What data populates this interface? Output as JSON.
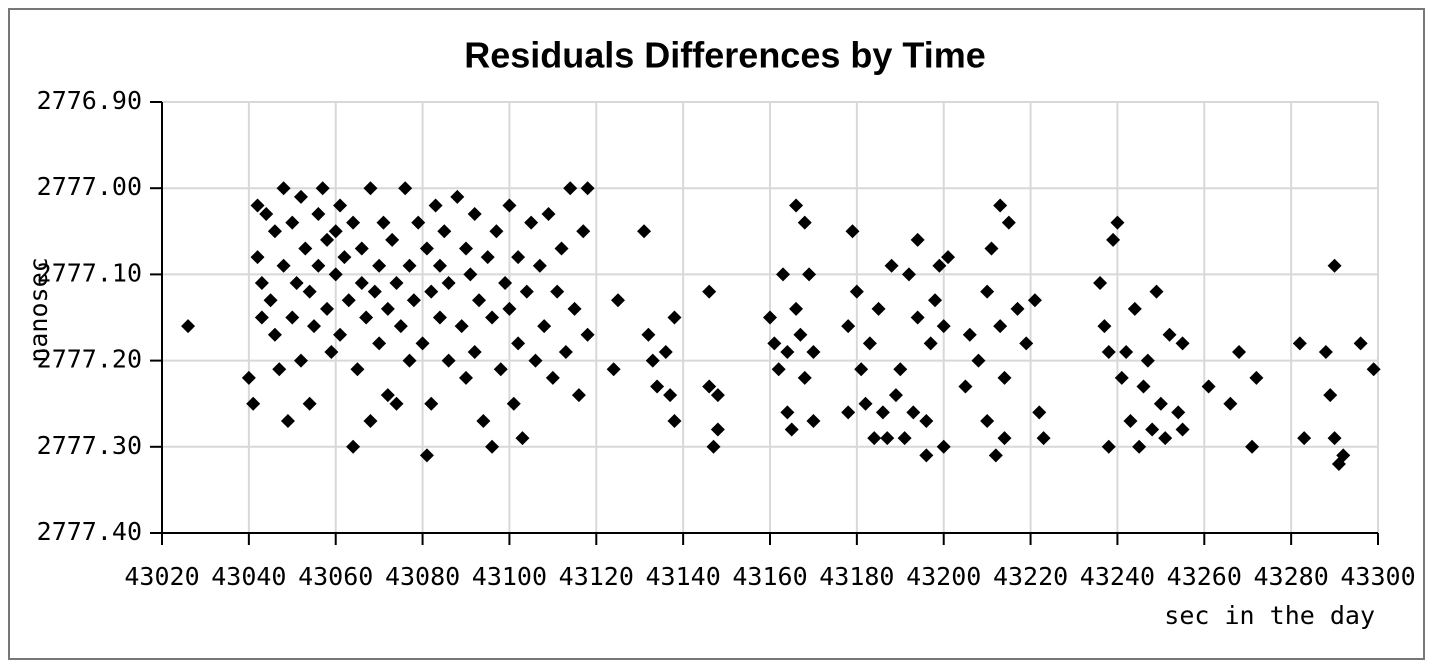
{
  "chart_data": {
    "type": "scatter",
    "title": "Residuals Differences by Time",
    "x_label": "sec in the day",
    "y_label": "nanosec",
    "xlim": [
      43020,
      43300
    ],
    "xticks": [
      43020,
      43040,
      43060,
      43080,
      43100,
      43120,
      43140,
      43160,
      43180,
      43200,
      43220,
      43240,
      43260,
      43280,
      43300
    ],
    "ylim": [
      2776.9,
      2777.4
    ],
    "y_inverted": true,
    "yticks": [
      {
        "value": 2776.9,
        "label": "2776.90"
      },
      {
        "value": 2777.0,
        "label": "2777.00"
      },
      {
        "value": 2777.1,
        "label": "2777.10"
      },
      {
        "value": 2777.2,
        "label": "2777.20"
      },
      {
        "value": 2777.3,
        "label": "2777.30"
      },
      {
        "value": 2777.4,
        "label": "2777.40"
      }
    ],
    "grid": true,
    "color": "#000000",
    "x": [
      43026,
      43040,
      43041,
      43042,
      43042,
      43043,
      43043,
      43044,
      43045,
      43046,
      43046,
      43047,
      43048,
      43048,
      43049,
      43050,
      43050,
      43051,
      43052,
      43052,
      43053,
      43054,
      43054,
      43055,
      43056,
      43056,
      43057,
      43058,
      43058,
      43059,
      43060,
      43060,
      43061,
      43061,
      43062,
      43063,
      43064,
      43064,
      43065,
      43066,
      43066,
      43067,
      43068,
      43068,
      43069,
      43070,
      43070,
      43071,
      43072,
      43072,
      43073,
      43074,
      43074,
      43075,
      43076,
      43077,
      43077,
      43078,
      43079,
      43080,
      43081,
      43081,
      43082,
      43082,
      43083,
      43084,
      43084,
      43085,
      43086,
      43086,
      43088,
      43089,
      43090,
      43090,
      43091,
      43092,
      43092,
      43093,
      43094,
      43095,
      43096,
      43096,
      43097,
      43098,
      43099,
      43100,
      43100,
      43101,
      43102,
      43102,
      43103,
      43104,
      43105,
      43106,
      43107,
      43108,
      43109,
      43110,
      43111,
      43112,
      43113,
      43114,
      43115,
      43116,
      43117,
      43118,
      43118,
      43124,
      43125,
      43131,
      43132,
      43133,
      43134,
      43136,
      43137,
      43138,
      43138,
      43146,
      43146,
      43147,
      43148,
      43148,
      43160,
      43161,
      43162,
      43163,
      43164,
      43164,
      43165,
      43166,
      43166,
      43167,
      43168,
      43168,
      43169,
      43170,
      43170,
      43178,
      43178,
      43179,
      43180,
      43181,
      43182,
      43183,
      43184,
      43185,
      43186,
      43187,
      43188,
      43189,
      43190,
      43191,
      43192,
      43193,
      43194,
      43194,
      43196,
      43196,
      43197,
      43198,
      43199,
      43200,
      43200,
      43201,
      43205,
      43206,
      43208,
      43210,
      43210,
      43211,
      43212,
      43213,
      43213,
      43214,
      43214,
      43215,
      43217,
      43219,
      43221,
      43222,
      43223,
      43236,
      43237,
      43238,
      43238,
      43239,
      43240,
      43241,
      43242,
      43243,
      43244,
      43245,
      43246,
      43247,
      43248,
      43249,
      43250,
      43251,
      43252,
      43254,
      43255,
      43255,
      43261,
      43266,
      43268,
      43271,
      43272,
      43282,
      43283,
      43288,
      43289,
      43290,
      43290,
      43291,
      43292,
      43296,
      43299
    ],
    "values": [
      2777.16,
      2777.22,
      2777.25,
      2777.02,
      2777.08,
      2777.11,
      2777.15,
      2777.03,
      2777.13,
      2777.05,
      2777.17,
      2777.21,
      2777.0,
      2777.09,
      2777.27,
      2777.15,
      2777.04,
      2777.11,
      2777.2,
      2777.01,
      2777.07,
      2777.12,
      2777.25,
      2777.16,
      2777.03,
      2777.09,
      2777.0,
      2777.14,
      2777.06,
      2777.19,
      2777.05,
      2777.1,
      2777.02,
      2777.17,
      2777.08,
      2777.13,
      2777.3,
      2777.04,
      2777.21,
      2777.11,
      2777.07,
      2777.15,
      2777.0,
      2777.27,
      2777.12,
      2777.09,
      2777.18,
      2777.04,
      2777.24,
      2777.14,
      2777.06,
      2777.11,
      2777.25,
      2777.16,
      2777.0,
      2777.2,
      2777.09,
      2777.13,
      2777.04,
      2777.18,
      2777.31,
      2777.07,
      2777.12,
      2777.25,
      2777.02,
      2777.15,
      2777.09,
      2777.05,
      2777.2,
      2777.11,
      2777.01,
      2777.16,
      2777.22,
      2777.07,
      2777.1,
      2777.03,
      2777.19,
      2777.13,
      2777.27,
      2777.08,
      2777.3,
      2777.15,
      2777.05,
      2777.21,
      2777.11,
      2777.02,
      2777.14,
      2777.25,
      2777.08,
      2777.18,
      2777.29,
      2777.12,
      2777.04,
      2777.2,
      2777.09,
      2777.16,
      2777.03,
      2777.22,
      2777.12,
      2777.07,
      2777.19,
      2777.0,
      2777.14,
      2777.24,
      2777.05,
      2777.17,
      2777.0,
      2777.21,
      2777.13,
      2777.05,
      2777.17,
      2777.2,
      2777.23,
      2777.19,
      2777.24,
      2777.15,
      2777.27,
      2777.12,
      2777.23,
      2777.3,
      2777.28,
      2777.24,
      2777.15,
      2777.18,
      2777.21,
      2777.1,
      2777.26,
      2777.19,
      2777.28,
      2777.02,
      2777.14,
      2777.17,
      2777.04,
      2777.22,
      2777.1,
      2777.27,
      2777.19,
      2777.16,
      2777.26,
      2777.05,
      2777.12,
      2777.21,
      2777.25,
      2777.18,
      2777.29,
      2777.14,
      2777.26,
      2777.29,
      2777.09,
      2777.24,
      2777.21,
      2777.29,
      2777.1,
      2777.26,
      2777.15,
      2777.06,
      2777.31,
      2777.27,
      2777.18,
      2777.13,
      2777.09,
      2777.3,
      2777.16,
      2777.08,
      2777.23,
      2777.17,
      2777.2,
      2777.27,
      2777.12,
      2777.07,
      2777.31,
      2777.16,
      2777.02,
      2777.22,
      2777.29,
      2777.04,
      2777.14,
      2777.18,
      2777.13,
      2777.26,
      2777.29,
      2777.11,
      2777.16,
      2777.3,
      2777.19,
      2777.06,
      2777.04,
      2777.22,
      2777.19,
      2777.27,
      2777.14,
      2777.3,
      2777.23,
      2777.2,
      2777.28,
      2777.12,
      2777.25,
      2777.29,
      2777.17,
      2777.26,
      2777.18,
      2777.28,
      2777.23,
      2777.25,
      2777.19,
      2777.3,
      2777.22,
      2777.18,
      2777.29,
      2777.19,
      2777.24,
      2777.09,
      2777.29,
      2777.32,
      2777.31,
      2777.18,
      2777.21
    ]
  }
}
